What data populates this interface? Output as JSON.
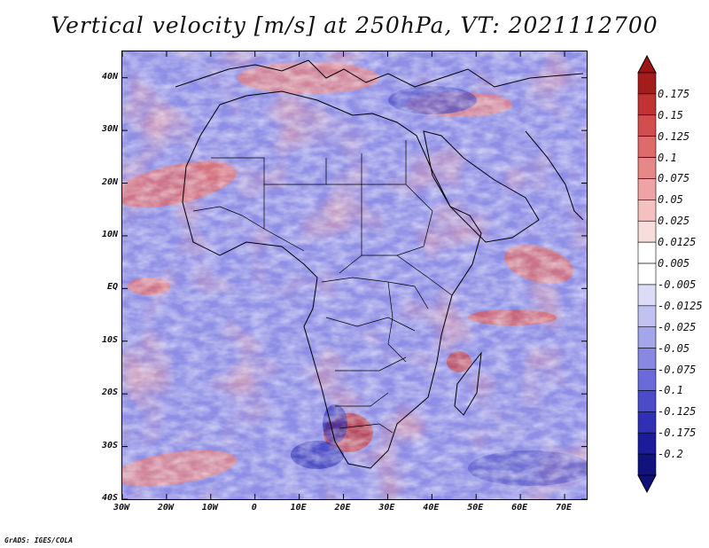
{
  "title": "Vertical velocity [m/s] at 250hPa, VT: 2021112700",
  "credit": "GrADS: IGES/COLA",
  "map": {
    "lon_range": [
      -30,
      75
    ],
    "lat_range": [
      -40,
      45
    ],
    "lat_labels": [
      {
        "text": "40N",
        "lat": 40
      },
      {
        "text": "30N",
        "lat": 30
      },
      {
        "text": "20N",
        "lat": 20
      },
      {
        "text": "10N",
        "lat": 10
      },
      {
        "text": "EQ",
        "lat": 0
      },
      {
        "text": "10S",
        "lat": -10
      },
      {
        "text": "20S",
        "lat": -20
      },
      {
        "text": "30S",
        "lat": -30
      },
      {
        "text": "40S",
        "lat": -40
      }
    ],
    "lon_labels": [
      {
        "text": "30W",
        "lon": -30
      },
      {
        "text": "20W",
        "lon": -20
      },
      {
        "text": "10W",
        "lon": -10
      },
      {
        "text": "0",
        "lon": 0
      },
      {
        "text": "10E",
        "lon": 10
      },
      {
        "text": "20E",
        "lon": 20
      },
      {
        "text": "30E",
        "lon": 30
      },
      {
        "text": "40E",
        "lon": 40
      },
      {
        "text": "50E",
        "lon": 50
      },
      {
        "text": "60E",
        "lon": 60
      },
      {
        "text": "70E",
        "lon": 70
      }
    ]
  },
  "colorbar": {
    "labels": [
      "0.175",
      "0.15",
      "0.125",
      "0.1",
      "0.075",
      "0.05",
      "0.025",
      "0.0125",
      "0.005",
      "-0.005",
      "-0.0125",
      "-0.025",
      "-0.05",
      "-0.075",
      "-0.1",
      "-0.125",
      "-0.175",
      "-0.2"
    ],
    "colors": [
      "#a51c1c",
      "#c23232",
      "#d24d4d",
      "#de6b6b",
      "#e78888",
      "#eea4a4",
      "#f4c0c0",
      "#f9dcdc",
      "#ffffff",
      "#ffffff",
      "#dcdcf9",
      "#c2c2f2",
      "#a5a5ea",
      "#8888e2",
      "#6a6ad8",
      "#4c4cc9",
      "#3030b4",
      "#1c1c9a",
      "#12127c"
    ],
    "top_color": "#9c1414",
    "bottom_color": "#10107a"
  }
}
